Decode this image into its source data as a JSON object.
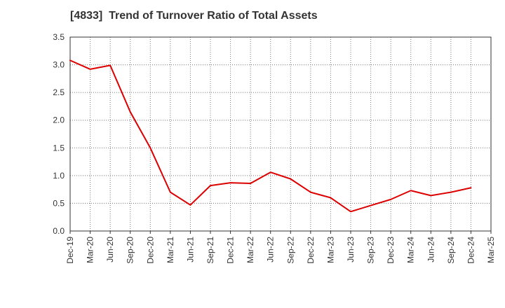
{
  "chart_data": {
    "type": "line",
    "title": "[4833]  Trend of Turnover Ratio of Total Assets",
    "xlabel": "",
    "ylabel": "",
    "x": [
      "Dec-19",
      "Mar-20",
      "Jun-20",
      "Sep-20",
      "Dec-20",
      "Mar-21",
      "Jun-21",
      "Sep-21",
      "Dec-21",
      "Mar-22",
      "Jun-22",
      "Sep-22",
      "Dec-22",
      "Mar-23",
      "Jun-23",
      "Sep-23",
      "Dec-23",
      "Mar-24",
      "Jun-24",
      "Sep-24",
      "Dec-24",
      "Mar-25"
    ],
    "series": [
      {
        "name": "",
        "color": "#dd0000",
        "values": [
          3.08,
          2.92,
          2.99,
          2.15,
          1.5,
          0.7,
          0.47,
          0.82,
          0.87,
          0.86,
          1.06,
          0.94,
          0.7,
          0.6,
          0.35,
          0.46,
          0.57,
          0.73,
          0.64,
          0.7,
          0.78,
          null
        ]
      }
    ],
    "ylim": [
      0,
      3.5
    ],
    "yticks": [
      "0.0",
      "0.5",
      "1.0",
      "1.5",
      "2.0",
      "2.5",
      "3.0",
      "3.5"
    ],
    "grid": true,
    "grid_style": "dotted",
    "legend": "none"
  }
}
